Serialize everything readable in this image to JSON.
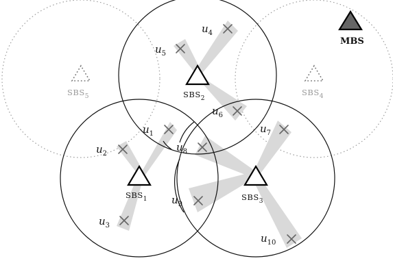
{
  "diagram": {
    "macro_base_station": {
      "label": "MBS",
      "color": "#666666"
    },
    "small_base_stations": [
      {
        "id": "sbs1",
        "name": "SBS",
        "index": "1",
        "active": true
      },
      {
        "id": "sbs2",
        "name": "SBS",
        "index": "2",
        "active": true
      },
      {
        "id": "sbs3",
        "name": "SBS",
        "index": "3",
        "active": true
      },
      {
        "id": "sbs4",
        "name": "SBS",
        "index": "4",
        "active": false
      },
      {
        "id": "sbs5",
        "name": "SBS",
        "index": "5",
        "active": false
      }
    ],
    "users": [
      {
        "id": "u1",
        "name": "u",
        "index": "1"
      },
      {
        "id": "u2",
        "name": "u",
        "index": "2"
      },
      {
        "id": "u3",
        "name": "u",
        "index": "3"
      },
      {
        "id": "u4",
        "name": "u",
        "index": "4"
      },
      {
        "id": "u5",
        "name": "u",
        "index": "5"
      },
      {
        "id": "u6",
        "name": "u",
        "index": "6"
      },
      {
        "id": "u7",
        "name": "u",
        "index": "7"
      },
      {
        "id": "u8",
        "name": "u",
        "index": "8"
      },
      {
        "id": "u9",
        "name": "u",
        "index": "9"
      },
      {
        "id": "u10",
        "name": "u",
        "index": "10"
      }
    ],
    "colors": {
      "beam": "#d9d9d9",
      "inactive_cell": "#9a9a9a",
      "user_marker": "#666666"
    }
  }
}
